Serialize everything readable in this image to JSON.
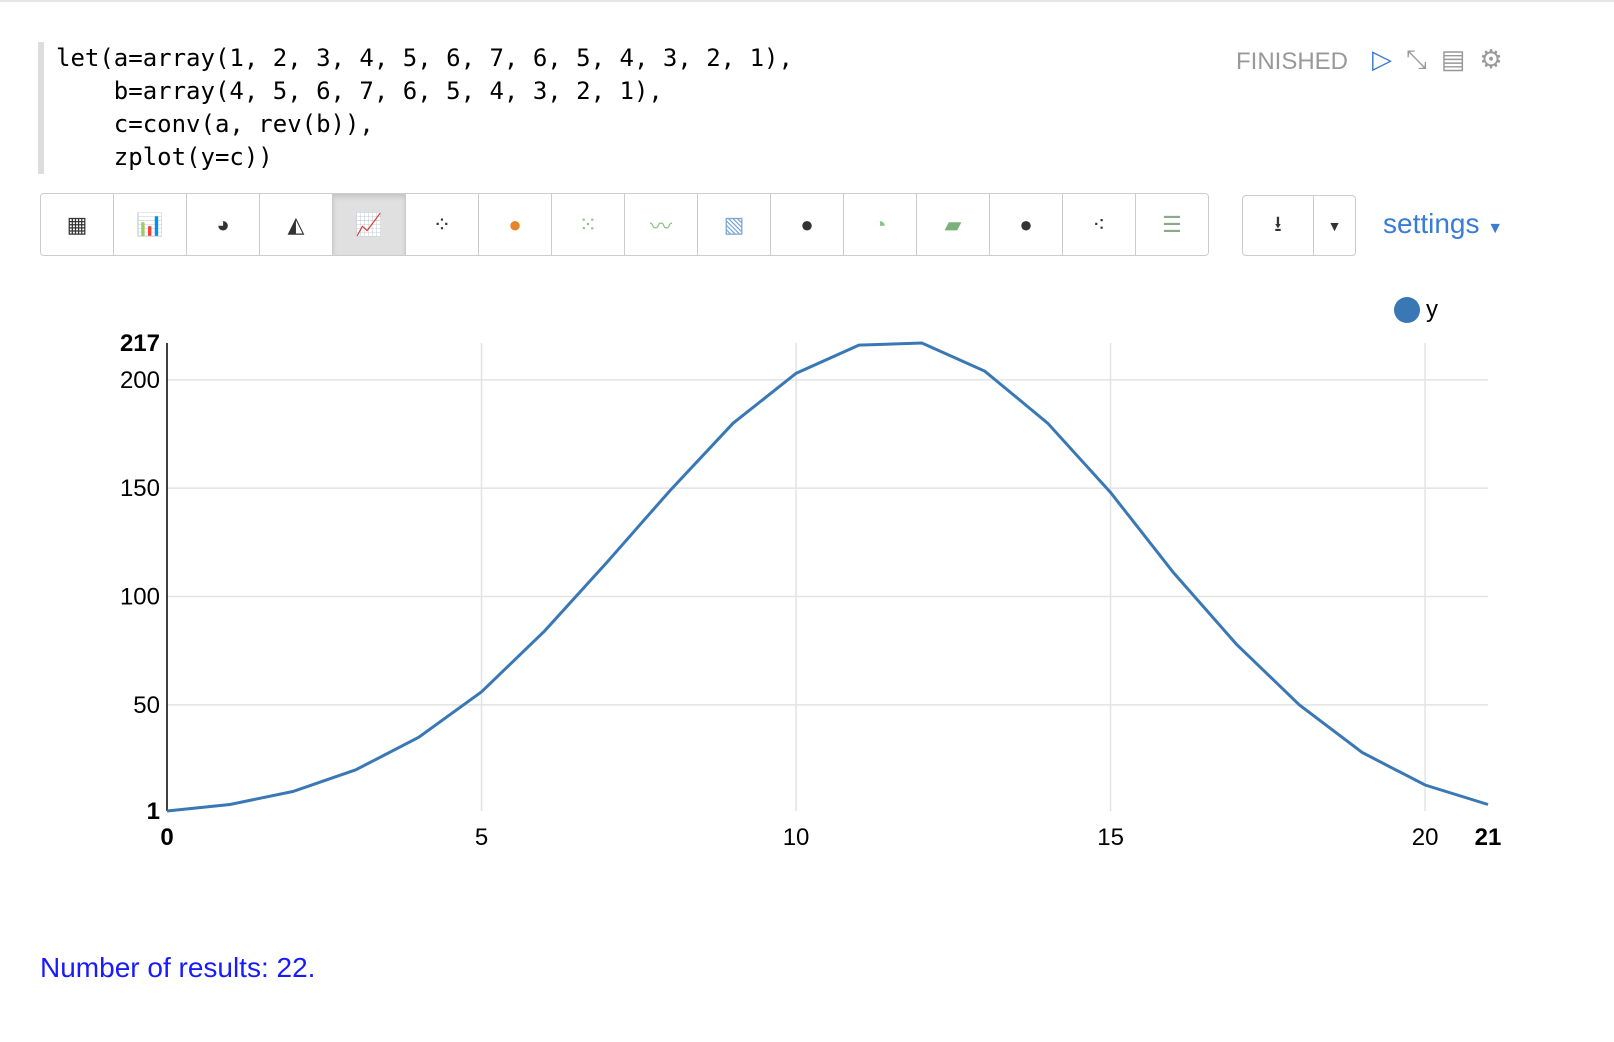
{
  "paragraph": {
    "code": "let(a=array(1, 2, 3, 4, 5, 6, 7, 6, 5, 4, 3, 2, 1),\n    b=array(4, 5, 6, 7, 6, 5, 4, 3, 2, 1),\n    c=conv(a, rev(b)),\n    zplot(y=c))",
    "status": "FINISHED"
  },
  "toolbar": {
    "buttons": [
      "table-icon",
      "bar-chart-icon",
      "pie-chart-icon",
      "area-chart-icon",
      "line-chart-icon",
      "scatter-chart-icon",
      "map-icon",
      "heatmap-icon",
      "multi-line-icon",
      "matrix-icon",
      "globe-icon",
      "pie-icon",
      "stacked-area-icon",
      "globe-icon",
      "bubble-icon",
      "parallel-icon"
    ],
    "active": 4,
    "settings_label": "settings"
  },
  "chart_data": {
    "type": "line",
    "x": [
      0,
      1,
      2,
      3,
      4,
      5,
      6,
      7,
      8,
      9,
      10,
      11,
      12,
      13,
      14,
      15,
      16,
      17,
      18,
      19,
      20,
      21
    ],
    "series": [
      {
        "name": "y",
        "color": "#3a78b5",
        "values": [
          1,
          4,
          10,
          20,
          35,
          56,
          84,
          116,
          149,
          180,
          203,
          216,
          217,
          204,
          180,
          148,
          111,
          78,
          50,
          28,
          13,
          4
        ]
      }
    ],
    "xlim": [
      0,
      21
    ],
    "ylim": [
      1,
      217
    ],
    "xticks": [
      0,
      5,
      10,
      15,
      20,
      21
    ],
    "yticks": [
      1,
      50,
      100,
      150,
      200,
      217
    ],
    "grid": true,
    "legend": "top-right"
  },
  "footer": {
    "results": "Number of results: 22."
  }
}
